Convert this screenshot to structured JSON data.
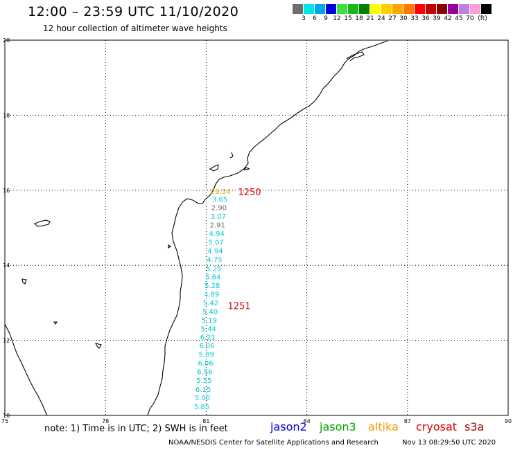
{
  "header": {
    "title": "12:00 – 23:59 UTC 11/10/2020",
    "subtitle": "12 hour collection of altimeter wave heights"
  },
  "colorbar": {
    "colors": [
      "#6e6e6e",
      "#00e5e5",
      "#00a8e8",
      "#0000e0",
      "#3ee03e",
      "#18b818",
      "#007f00",
      "#ffff00",
      "#ffd000",
      "#ffa500",
      "#ff7a00",
      "#ff0000",
      "#c40000",
      "#8b0000",
      "#9b009b",
      "#c07fe0",
      "#ff9ed6",
      "#000000"
    ],
    "labels": [
      "3",
      "6",
      "9",
      "12",
      "15",
      "18",
      "21",
      "24",
      "27",
      "30",
      "33",
      "36",
      "39",
      "42",
      "45",
      "70",
      "(ft)"
    ]
  },
  "map": {
    "lon_ticks": [
      "75",
      "78",
      "81",
      "84",
      "87",
      "90"
    ],
    "lat_ticks": [
      "20",
      "18",
      "16",
      "14",
      "12",
      "10"
    ],
    "lon_range": [
      75,
      90
    ],
    "lat_range": [
      10,
      20
    ],
    "grid": "dotted",
    "track_points": [
      {
        "lat": 15.98,
        "value": "29.34",
        "color": "#e0a000"
      },
      {
        "lat": 15.77,
        "value": "3.65",
        "color": "#00c8d8"
      },
      {
        "lat": 15.54,
        "value": "2.90",
        "color": "#6e6e6e"
      },
      {
        "lat": 15.31,
        "value": "3.07",
        "color": "#00c8d8"
      },
      {
        "lat": 15.08,
        "value": "2.91",
        "color": "#6e6e6e"
      },
      {
        "lat": 14.85,
        "value": "4.94",
        "color": "#00c8d8"
      },
      {
        "lat": 14.62,
        "value": "5.07",
        "color": "#00c8d8"
      },
      {
        "lat": 14.39,
        "value": "4.94",
        "color": "#00c8d8"
      },
      {
        "lat": 14.16,
        "value": "4.75",
        "color": "#00c8d8"
      },
      {
        "lat": 13.92,
        "value": "5.25",
        "color": "#00c8d8"
      },
      {
        "lat": 13.7,
        "value": "5.64",
        "color": "#00c8d8"
      },
      {
        "lat": 13.47,
        "value": "5.28",
        "color": "#00c8d8"
      },
      {
        "lat": 13.24,
        "value": "4.89",
        "color": "#00c8d8"
      },
      {
        "lat": 13.01,
        "value": "5.42",
        "color": "#00c8d8"
      },
      {
        "lat": 12.78,
        "value": "5.40",
        "color": "#00c8d8"
      },
      {
        "lat": 12.55,
        "value": "5.19",
        "color": "#00c8d8"
      },
      {
        "lat": 12.32,
        "value": "5.44",
        "color": "#00c8d8"
      },
      {
        "lat": 12.09,
        "value": "6.21",
        "color": "#00c8d8"
      },
      {
        "lat": 11.86,
        "value": "6.06",
        "color": "#00c8d8"
      },
      {
        "lat": 11.63,
        "value": "5.89",
        "color": "#00c8d8"
      },
      {
        "lat": 11.4,
        "value": "6.06",
        "color": "#00c8d8"
      },
      {
        "lat": 11.17,
        "value": "6.56",
        "color": "#00c8d8"
      },
      {
        "lat": 10.94,
        "value": "5.55",
        "color": "#00c8d8"
      },
      {
        "lat": 10.7,
        "value": "6.15",
        "color": "#00c8d8"
      },
      {
        "lat": 10.48,
        "value": "5.00",
        "color": "#00c8d8"
      },
      {
        "lat": 10.24,
        "value": "5.85",
        "color": "#00c8d8"
      }
    ],
    "time_labels": [
      {
        "text": "1250",
        "lat": 15.96,
        "color": "#e00000"
      },
      {
        "text": "1251",
        "lat": 12.92,
        "color": "#e00000"
      }
    ]
  },
  "footer": {
    "note": "note: 1) Time is in UTC; 2) SWH is in feet",
    "legend": [
      {
        "name": "jason2",
        "color": "#0000e0"
      },
      {
        "name": "jason3",
        "color": "#00a000"
      },
      {
        "name": "altika",
        "color": "#ff9900"
      },
      {
        "name": "cryosat",
        "color": "#e00000"
      },
      {
        "name": "s3a",
        "color": "#b00000"
      }
    ],
    "credit": "NOAA/NESDIS Center for Satellite Applications and Research",
    "timestamp": "Nov 13 08:29:50 UTC 2020"
  }
}
